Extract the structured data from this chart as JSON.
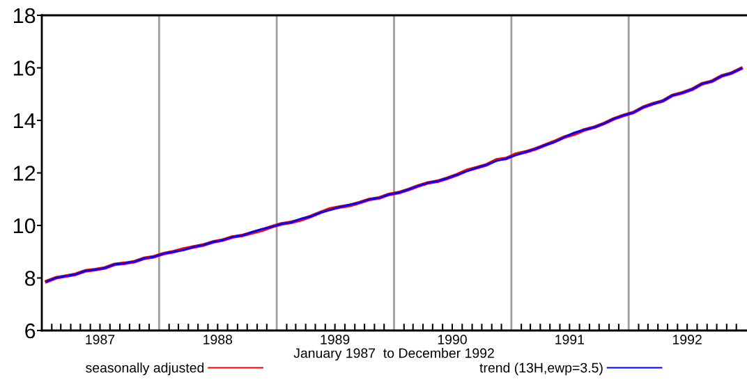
{
  "chart_data": {
    "type": "line",
    "xlabel": "January 1987  to December 1992",
    "x": [
      "1987-01-16",
      "1987-02-15",
      "1987-03-16",
      "1987-04-16",
      "1987-05-16",
      "1987-06-16",
      "1987-07-16",
      "1987-08-16",
      "1987-09-16",
      "1987-10-16",
      "1987-11-16",
      "1987-12-16",
      "1988-01-16",
      "1988-02-15",
      "1988-03-16",
      "1988-04-16",
      "1988-05-16",
      "1988-06-16",
      "1988-07-16",
      "1988-08-16",
      "1988-09-16",
      "1988-10-16",
      "1988-11-16",
      "1988-12-16",
      "1989-01-16",
      "1989-02-15",
      "1989-03-16",
      "1989-04-16",
      "1989-05-16",
      "1989-06-16",
      "1989-07-16",
      "1989-08-16",
      "1989-09-16",
      "1989-10-16",
      "1989-11-16",
      "1989-12-16",
      "1990-01-16",
      "1990-02-15",
      "1990-03-16",
      "1990-04-16",
      "1990-05-16",
      "1990-06-16",
      "1990-07-16",
      "1990-08-16",
      "1990-09-16",
      "1990-10-16",
      "1990-11-16",
      "1990-12-16",
      "1991-01-16",
      "1991-02-15",
      "1991-03-16",
      "1991-04-16",
      "1991-05-16",
      "1991-06-16",
      "1991-07-16",
      "1991-08-16",
      "1991-09-16",
      "1991-10-16",
      "1991-11-16",
      "1991-12-16",
      "1992-01-16",
      "1992-02-15",
      "1992-03-16",
      "1992-04-16",
      "1992-05-16",
      "1992-06-16",
      "1992-07-16",
      "1992-08-16",
      "1992-09-16",
      "1992-10-16",
      "1992-11-16",
      "1992-12-16"
    ],
    "series": [
      {
        "name": "seasonally adjusted",
        "color": "#ff0000",
        "values": [
          7.87,
          8.01,
          8.07,
          8.14,
          8.27,
          8.32,
          8.38,
          8.52,
          8.56,
          8.62,
          8.75,
          8.81,
          8.93,
          9.0,
          9.1,
          9.18,
          9.25,
          9.37,
          9.44,
          9.56,
          9.62,
          9.72,
          9.82,
          9.95,
          10.06,
          10.12,
          10.21,
          10.34,
          10.49,
          10.63,
          10.7,
          10.76,
          10.87,
          10.99,
          11.05,
          11.18,
          11.25,
          11.37,
          11.5,
          11.62,
          11.68,
          11.8,
          11.93,
          12.1,
          12.2,
          12.31,
          12.5,
          12.55,
          12.72,
          12.8,
          12.91,
          13.06,
          13.2,
          13.37,
          13.48,
          13.64,
          13.74,
          13.88,
          14.06,
          14.19,
          14.3,
          14.5,
          14.63,
          14.74,
          14.95,
          15.05,
          15.18,
          15.39,
          15.49,
          15.69,
          15.8,
          15.98
        ]
      },
      {
        "name": "trend (13H,ewp=3.5)",
        "color": "#0000ff",
        "values": [
          7.87,
          8.01,
          8.07,
          8.14,
          8.27,
          8.32,
          8.38,
          8.52,
          8.56,
          8.62,
          8.75,
          8.81,
          8.93,
          9.0,
          9.06,
          9.18,
          9.25,
          9.37,
          9.44,
          9.56,
          9.62,
          9.75,
          9.86,
          9.95,
          10.06,
          10.12,
          10.25,
          10.34,
          10.49,
          10.59,
          10.7,
          10.79,
          10.87,
          10.99,
          11.05,
          11.18,
          11.25,
          11.37,
          11.5,
          11.62,
          11.68,
          11.8,
          11.93,
          12.07,
          12.2,
          12.31,
          12.46,
          12.55,
          12.68,
          12.8,
          12.91,
          13.06,
          13.18,
          13.37,
          13.53,
          13.64,
          13.74,
          13.88,
          14.06,
          14.19,
          14.3,
          14.5,
          14.63,
          14.74,
          14.95,
          15.05,
          15.18,
          15.39,
          15.49,
          15.69,
          15.8,
          15.98
        ]
      }
    ],
    "xlim": [
      "1987-01-01",
      "1993-01-01"
    ],
    "xticks": [
      {
        "value": "1987-02-01",
        "label": null
      },
      {
        "value": "1987-03-01",
        "label": null
      },
      {
        "value": "1987-04-01",
        "label": null
      },
      {
        "value": "1987-05-01",
        "label": null
      },
      {
        "value": "1987-06-01",
        "label": null
      },
      {
        "value": "1987-07-01",
        "label": "1987"
      },
      {
        "value": "1987-08-01",
        "label": null
      },
      {
        "value": "1987-09-01",
        "label": null
      },
      {
        "value": "1987-10-01",
        "label": null
      },
      {
        "value": "1987-11-01",
        "label": null
      },
      {
        "value": "1987-12-01",
        "label": null
      },
      {
        "value": "1988-02-01",
        "label": null
      },
      {
        "value": "1988-03-01",
        "label": null
      },
      {
        "value": "1988-04-01",
        "label": null
      },
      {
        "value": "1988-05-01",
        "label": null
      },
      {
        "value": "1988-06-01",
        "label": null
      },
      {
        "value": "1988-07-01",
        "label": "1988"
      },
      {
        "value": "1988-08-01",
        "label": null
      },
      {
        "value": "1988-09-01",
        "label": null
      },
      {
        "value": "1988-10-01",
        "label": null
      },
      {
        "value": "1988-11-01",
        "label": null
      },
      {
        "value": "1988-12-01",
        "label": null
      },
      {
        "value": "1989-02-01",
        "label": null
      },
      {
        "value": "1989-03-01",
        "label": null
      },
      {
        "value": "1989-04-01",
        "label": null
      },
      {
        "value": "1989-05-01",
        "label": null
      },
      {
        "value": "1989-06-01",
        "label": null
      },
      {
        "value": "1989-07-01",
        "label": "1989"
      },
      {
        "value": "1989-08-01",
        "label": null
      },
      {
        "value": "1989-09-01",
        "label": null
      },
      {
        "value": "1989-10-01",
        "label": null
      },
      {
        "value": "1989-11-01",
        "label": null
      },
      {
        "value": "1989-12-01",
        "label": null
      },
      {
        "value": "1990-02-01",
        "label": null
      },
      {
        "value": "1990-03-01",
        "label": null
      },
      {
        "value": "1990-04-01",
        "label": null
      },
      {
        "value": "1990-05-01",
        "label": null
      },
      {
        "value": "1990-06-01",
        "label": null
      },
      {
        "value": "1990-07-01",
        "label": "1990"
      },
      {
        "value": "1990-08-01",
        "label": null
      },
      {
        "value": "1990-09-01",
        "label": null
      },
      {
        "value": "1990-10-01",
        "label": null
      },
      {
        "value": "1990-11-01",
        "label": null
      },
      {
        "value": "1990-12-01",
        "label": null
      },
      {
        "value": "1991-02-01",
        "label": null
      },
      {
        "value": "1991-03-01",
        "label": null
      },
      {
        "value": "1991-04-01",
        "label": null
      },
      {
        "value": "1991-05-01",
        "label": null
      },
      {
        "value": "1991-06-01",
        "label": null
      },
      {
        "value": "1991-07-01",
        "label": "1991"
      },
      {
        "value": "1991-08-01",
        "label": null
      },
      {
        "value": "1991-09-01",
        "label": null
      },
      {
        "value": "1991-10-01",
        "label": null
      },
      {
        "value": "1991-11-01",
        "label": null
      },
      {
        "value": "1991-12-01",
        "label": null
      },
      {
        "value": "1992-02-01",
        "label": null
      },
      {
        "value": "1992-03-01",
        "label": null
      },
      {
        "value": "1992-04-01",
        "label": null
      },
      {
        "value": "1992-05-01",
        "label": null
      },
      {
        "value": "1992-06-01",
        "label": null
      },
      {
        "value": "1992-07-01",
        "label": "1992"
      },
      {
        "value": "1992-08-01",
        "label": null
      },
      {
        "value": "1992-09-01",
        "label": null
      },
      {
        "value": "1992-10-01",
        "label": null
      },
      {
        "value": "1992-11-01",
        "label": null
      },
      {
        "value": "1992-12-01",
        "label": null
      }
    ],
    "ylim": [
      6,
      18
    ],
    "yticks": [
      6,
      8,
      10,
      12,
      14,
      16,
      18
    ],
    "ref_lines": [
      {
        "axis": "x",
        "value": "1988-01-01",
        "color": "#a0a0a0"
      },
      {
        "axis": "x",
        "value": "1989-01-01",
        "color": "#a0a0a0"
      },
      {
        "axis": "x",
        "value": "1990-01-01",
        "color": "#a0a0a0"
      },
      {
        "axis": "x",
        "value": "1991-01-01",
        "color": "#a0a0a0"
      },
      {
        "axis": "x",
        "value": "1992-01-01",
        "color": "#a0a0a0"
      }
    ],
    "grid": false,
    "legend": "bottom",
    "marker": "none",
    "line_style": "solid"
  }
}
